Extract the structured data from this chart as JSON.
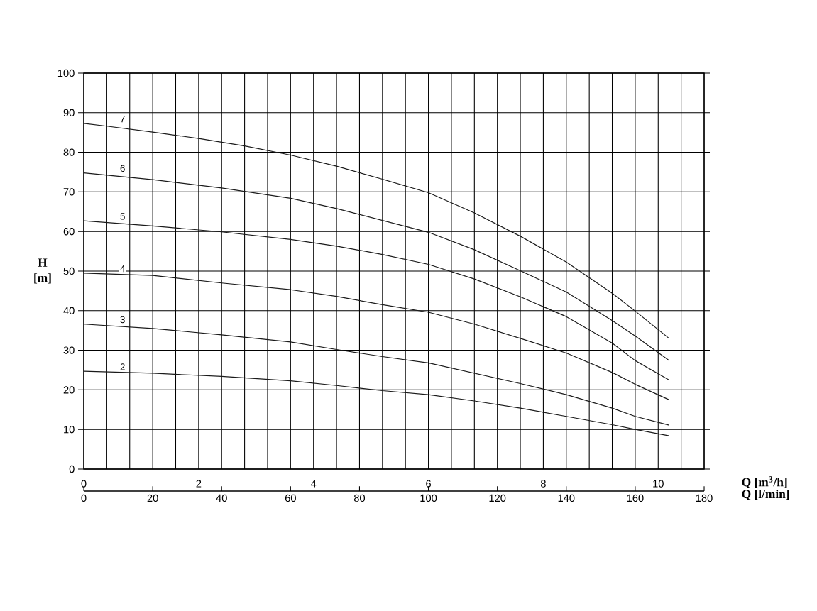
{
  "chart_data": {
    "type": "line",
    "xlabel": "Q [m$^{3}$/h]",
    "ylabel": "H [m]",
    "x2label": "Q [l/min]",
    "xlim": [
      0,
      10.8
    ],
    "ylim": [
      0,
      100
    ],
    "xticks": [
      0,
      {
        "value": 0.4,
        "label": null
      },
      {
        "value": 0.8,
        "label": null
      },
      {
        "value": 1.2,
        "label": null
      },
      {
        "value": 1.6,
        "label": null
      },
      2,
      {
        "value": 2.4,
        "label": null
      },
      {
        "value": 2.8,
        "label": null
      },
      {
        "value": 3.2,
        "label": null
      },
      {
        "value": 3.6,
        "label": null
      },
      4,
      {
        "value": 4.4,
        "label": null
      },
      {
        "value": 4.8,
        "label": null
      },
      {
        "value": 5.2,
        "label": null
      },
      {
        "value": 5.6,
        "label": null
      },
      6,
      {
        "value": 6.4,
        "label": null
      },
      {
        "value": 6.8,
        "label": null
      },
      {
        "value": 7.2,
        "label": null
      },
      {
        "value": 7.6,
        "label": null
      },
      8,
      {
        "value": 8.4,
        "label": null
      },
      {
        "value": 8.8,
        "label": null
      },
      {
        "value": 9.2,
        "label": null
      },
      {
        "value": 9.6,
        "label": null
      },
      10,
      {
        "value": 10.4,
        "label": null
      },
      {
        "value": 10.8,
        "label": null
      }
    ],
    "yticks": [
      0,
      10,
      20,
      30,
      40,
      50,
      60,
      70,
      80,
      90,
      100
    ],
    "x2lim": [
      0,
      180
    ],
    "x2ticks": [
      0,
      20,
      40,
      60,
      80,
      100,
      120,
      140,
      160,
      180
    ],
    "grid": true,
    "marker": "none",
    "line_style": "solid",
    "x": [
      0,
      1.2,
      2.4,
      3.6,
      4.4,
      5.2,
      6,
      6.8,
      7.6,
      8.4,
      9.2,
      9.6,
      10.19
    ],
    "series": [
      {
        "name": "2",
        "color": "#1a1a1a",
        "values": [
          24.7,
          24.2,
          23.4,
          22.3,
          21.1,
          19.8,
          18.8,
          17.2,
          15.4,
          13.3,
          11.2,
          10.0,
          8.4
        ]
      },
      {
        "name": "3",
        "color": "#1a1a1a",
        "values": [
          36.6,
          35.5,
          33.9,
          32.1,
          30.2,
          28.4,
          26.8,
          24.2,
          21.6,
          18.8,
          15.4,
          13.3,
          11.1
        ]
      },
      {
        "name": "4",
        "color": "#1a1a1a",
        "values": [
          49.5,
          48.9,
          47.0,
          45.3,
          43.6,
          41.5,
          39.6,
          36.6,
          33.0,
          29.3,
          24.4,
          21.4,
          17.5
        ]
      },
      {
        "name": "5",
        "color": "#1a1a1a",
        "values": [
          62.7,
          61.4,
          59.9,
          58.0,
          56.3,
          54.2,
          51.7,
          48.0,
          43.5,
          38.5,
          31.8,
          27.4,
          22.5
        ]
      },
      {
        "name": "6",
        "color": "#1a1a1a",
        "values": [
          74.8,
          73.1,
          71.0,
          68.4,
          65.8,
          62.8,
          59.8,
          55.4,
          50.1,
          44.7,
          37.5,
          33.6,
          27.4
        ]
      },
      {
        "name": "7",
        "color": "#1a1a1a",
        "x": [
          0,
          0.4,
          1.2,
          2,
          2.8,
          3.6,
          4.4,
          5.2,
          6,
          6.8,
          7.6,
          8.4,
          9.2,
          9.6,
          10.19
        ],
        "values": [
          87.3,
          86.6,
          85.1,
          83.5,
          81.6,
          79.3,
          76.5,
          73.2,
          69.8,
          64.7,
          58.8,
          52.3,
          44.4,
          39.9,
          33.0
        ]
      }
    ]
  }
}
